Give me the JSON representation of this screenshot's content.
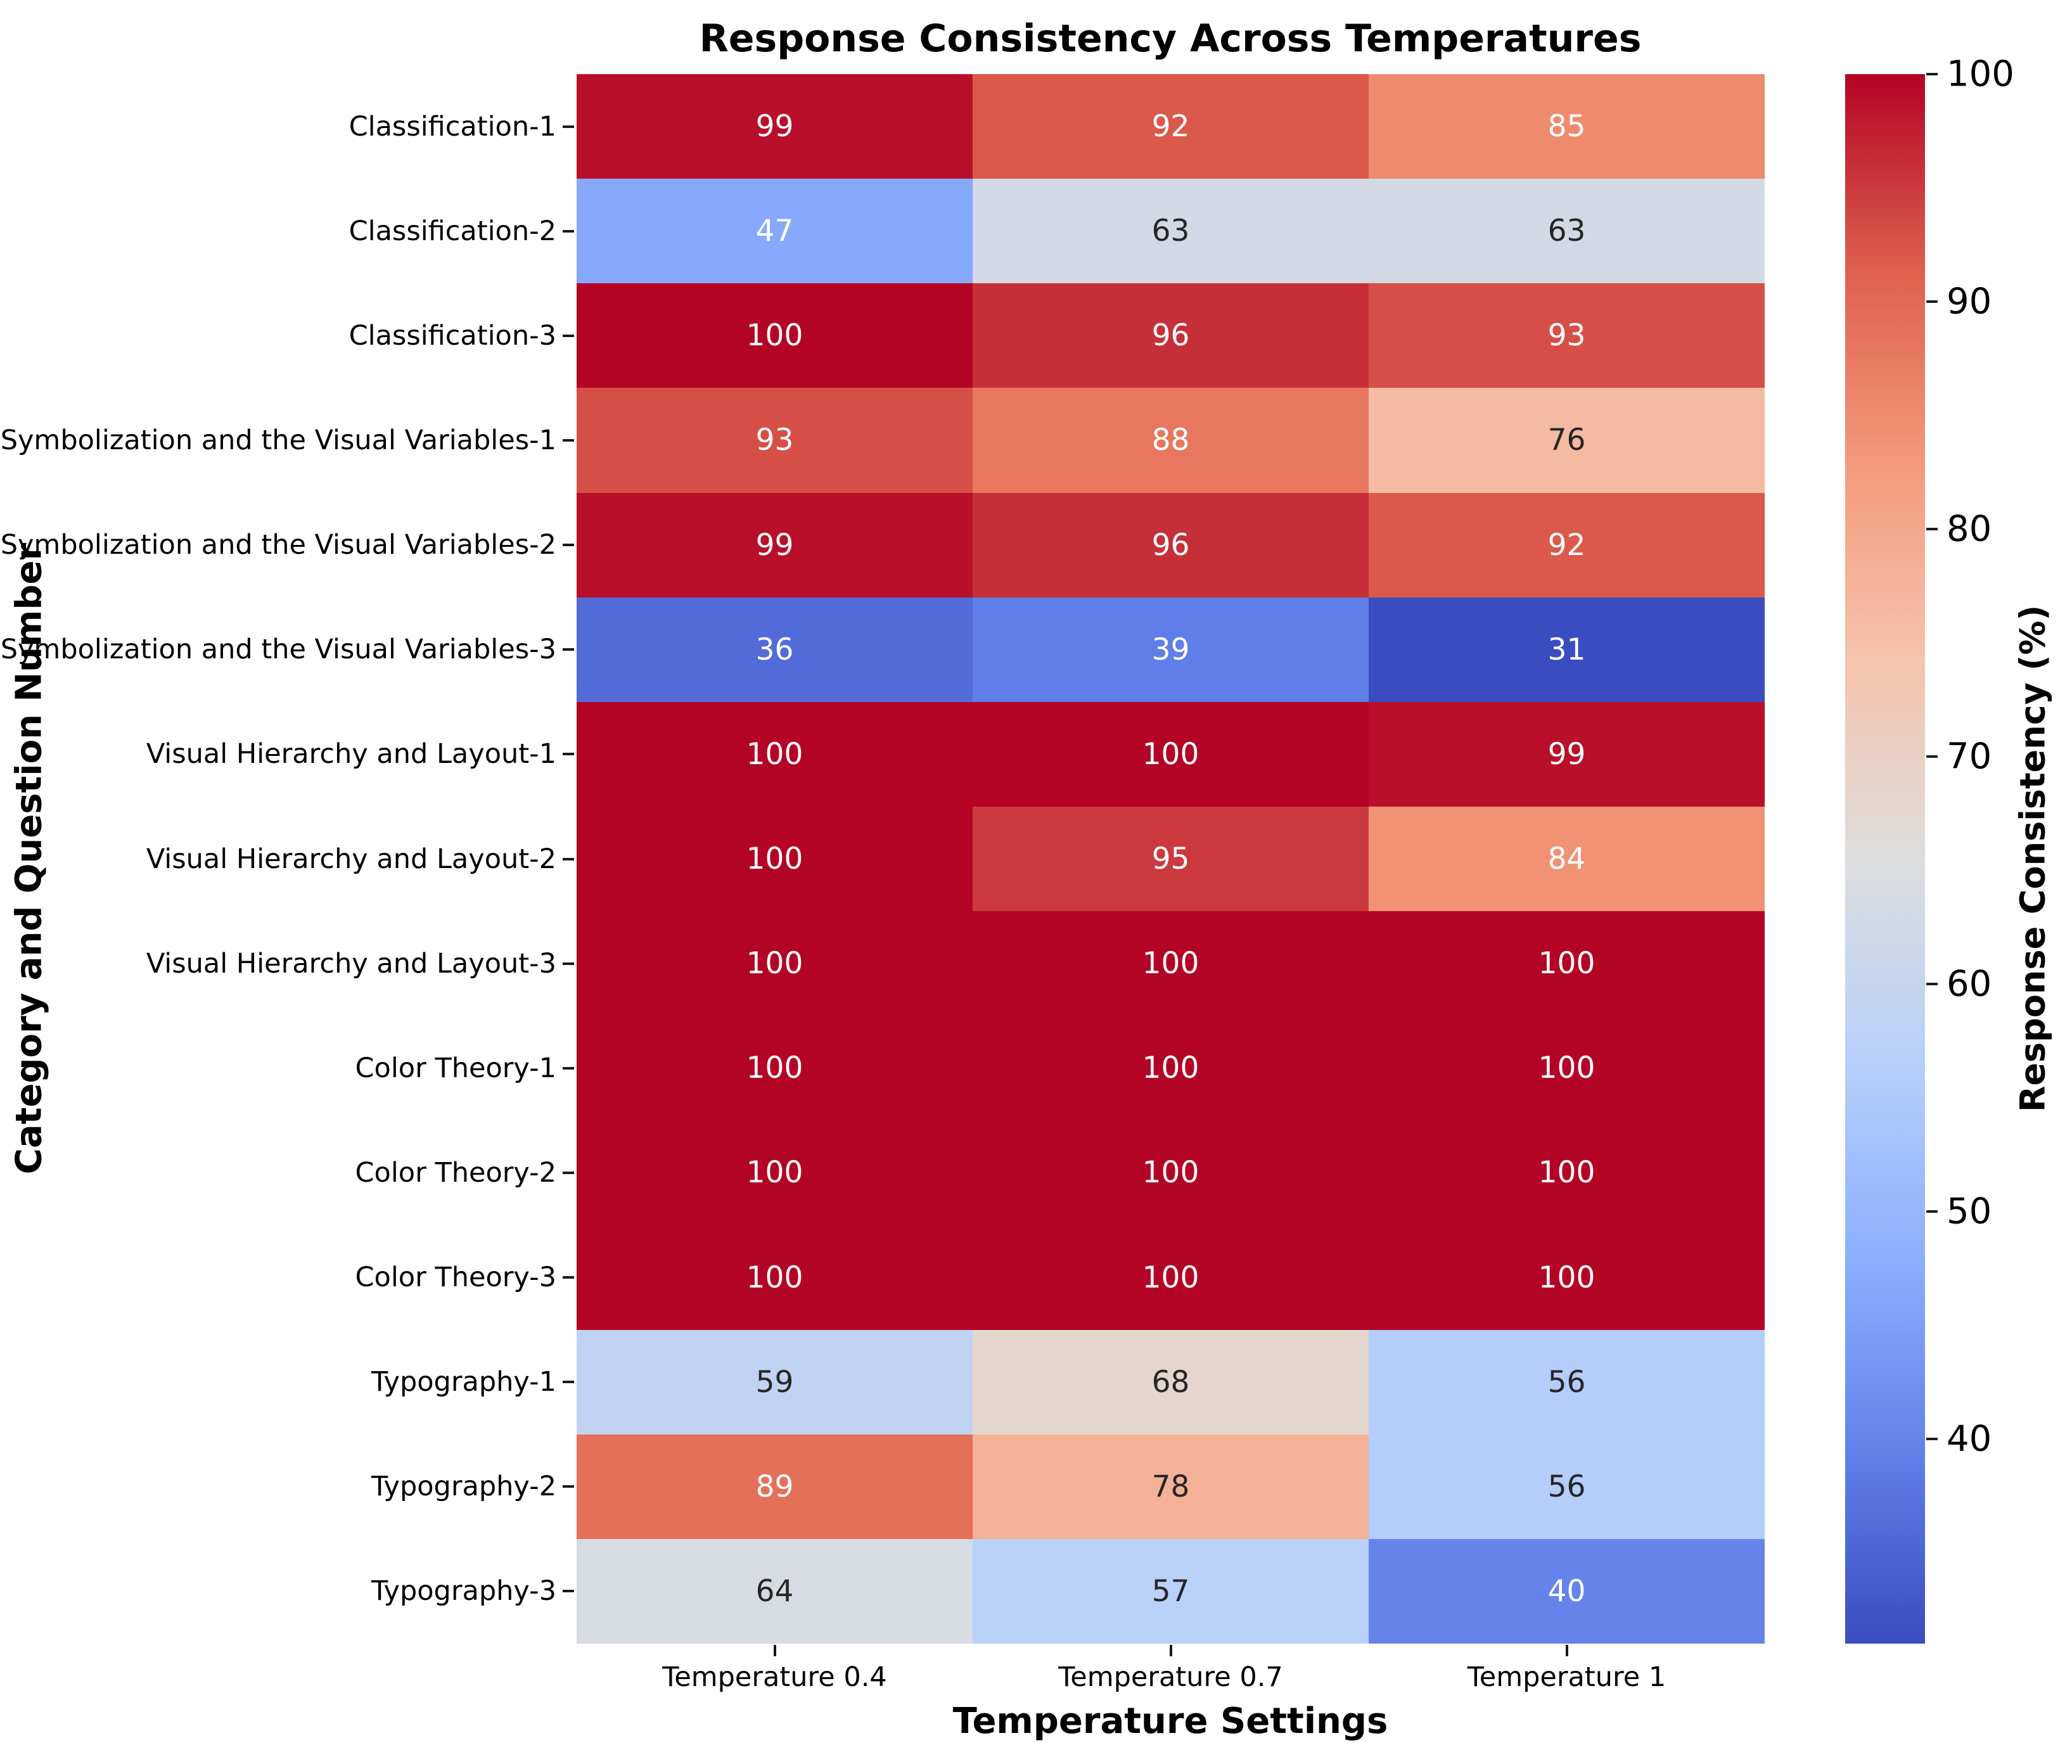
{
  "chart_data": {
    "type": "heatmap",
    "title": "Response Consistency Across Temperatures",
    "xlabel": "Temperature Settings",
    "ylabel": "Category and Question Number",
    "colorbar_label": "Response Consistency (%)",
    "columns": [
      "Temperature 0.4",
      "Temperature 0.7",
      "Temperature 1"
    ],
    "rows": [
      "Classification-1",
      "Classification-2",
      "Classification-3",
      "Symbolization and the Visual Variables-1",
      "Symbolization and the Visual Variables-2",
      "Symbolization and the Visual Variables-3",
      "Visual Hierarchy and Layout-1",
      "Visual Hierarchy and Layout-2",
      "Visual Hierarchy and Layout-3",
      "Color Theory-1",
      "Color Theory-2",
      "Color Theory-3",
      "Typography-1",
      "Typography-2",
      "Typography-3"
    ],
    "values": [
      [
        99,
        92,
        85
      ],
      [
        47,
        63,
        63
      ],
      [
        100,
        96,
        93
      ],
      [
        93,
        88,
        76
      ],
      [
        99,
        96,
        92
      ],
      [
        36,
        39,
        31
      ],
      [
        100,
        100,
        99
      ],
      [
        100,
        95,
        84
      ],
      [
        100,
        100,
        100
      ],
      [
        100,
        100,
        100
      ],
      [
        100,
        100,
        100
      ],
      [
        100,
        100,
        100
      ],
      [
        59,
        68,
        56
      ],
      [
        89,
        78,
        56
      ],
      [
        64,
        57,
        40
      ]
    ],
    "vmin": 31,
    "vmax": 100,
    "annotated": true,
    "grid": false,
    "legend_position": "right",
    "colorbar_ticks": [
      40,
      50,
      60,
      70,
      80,
      90,
      100
    ],
    "colormap": {
      "name": "coolwarm",
      "stops": [
        "#3b4cc0",
        "#6282ea",
        "#8db0fe",
        "#b8d0f9",
        "#dddddd",
        "#f5c4ad",
        "#f49a7b",
        "#de604d",
        "#b40426"
      ]
    },
    "annotation_colors": {
      "on_dark": "#ffffff",
      "on_light": "#262626"
    }
  }
}
